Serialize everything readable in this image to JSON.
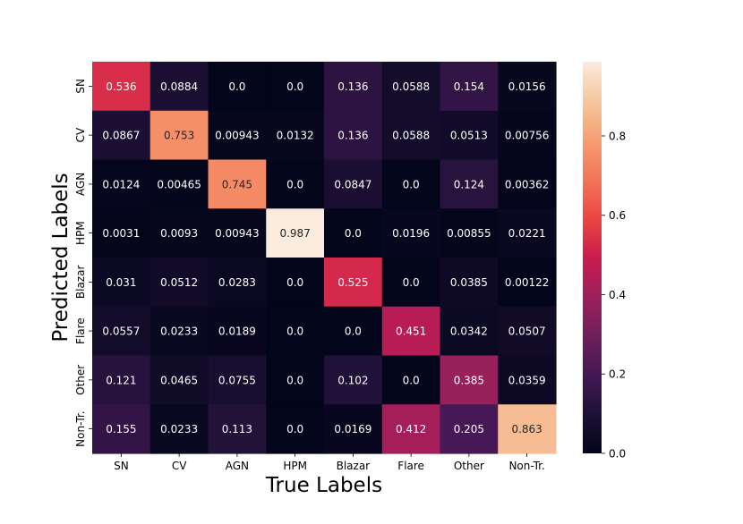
{
  "chart_data": {
    "type": "heatmap",
    "title": "",
    "xlabel": "True Labels",
    "ylabel": "Predicted Labels",
    "x_categories": [
      "SN",
      "CV",
      "AGN",
      "HPM",
      "Blazar",
      "Flare",
      "Other",
      "Non-Tr."
    ],
    "y_categories": [
      "SN",
      "CV",
      "AGN",
      "HPM",
      "Blazar",
      "Flare",
      "Other",
      "Non-Tr."
    ],
    "cell_labels": [
      [
        "0.536",
        "0.0884",
        "0.0",
        "0.0",
        "0.136",
        "0.0588",
        "0.154",
        "0.0156"
      ],
      [
        "0.0867",
        "0.753",
        "0.00943",
        "0.0132",
        "0.136",
        "0.0588",
        "0.0513",
        "0.00756"
      ],
      [
        "0.0124",
        "0.00465",
        "0.745",
        "0.0",
        "0.0847",
        "0.0",
        "0.124",
        "0.00362"
      ],
      [
        "0.0031",
        "0.0093",
        "0.00943",
        "0.987",
        "0.0",
        "0.0196",
        "0.00855",
        "0.0221"
      ],
      [
        "0.031",
        "0.0512",
        "0.0283",
        "0.0",
        "0.525",
        "0.0",
        "0.0385",
        "0.00122"
      ],
      [
        "0.0557",
        "0.0233",
        "0.0189",
        "0.0",
        "0.0",
        "0.451",
        "0.0342",
        "0.0507"
      ],
      [
        "0.121",
        "0.0465",
        "0.0755",
        "0.0",
        "0.102",
        "0.0",
        "0.385",
        "0.0359"
      ],
      [
        "0.155",
        "0.0233",
        "0.113",
        "0.0",
        "0.0169",
        "0.412",
        "0.205",
        "0.863"
      ]
    ],
    "colorbar": {
      "min": 0.0,
      "max": 0.987,
      "colormap": "rocket",
      "ticks": [
        0.0,
        0.2,
        0.4,
        0.6,
        0.8
      ],
      "tick_labels": [
        "0.0",
        "0.2",
        "0.4",
        "0.6",
        "0.8"
      ]
    },
    "text_dark_color": "#262626",
    "text_light_color": "#ffffff"
  }
}
